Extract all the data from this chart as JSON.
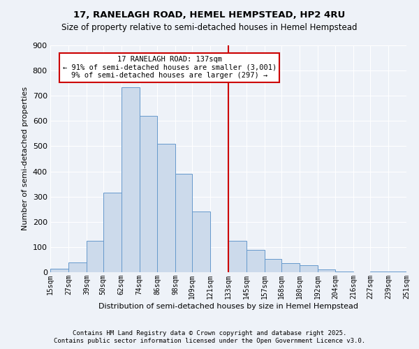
{
  "title1": "17, RANELAGH ROAD, HEMEL HEMPSTEAD, HP2 4RU",
  "title2": "Size of property relative to semi-detached houses in Hemel Hempstead",
  "xlabel": "Distribution of semi-detached houses by size in Hemel Hempstead",
  "ylabel": "Number of semi-detached properties",
  "bar_edges": [
    15,
    27,
    39,
    50,
    62,
    74,
    86,
    98,
    109,
    121,
    133,
    145,
    157,
    168,
    180,
    192,
    204,
    216,
    227,
    239,
    251
  ],
  "bar_heights": [
    15,
    40,
    125,
    315,
    735,
    620,
    510,
    390,
    240,
    0,
    125,
    90,
    52,
    37,
    27,
    10,
    3,
    0,
    3,
    3
  ],
  "bar_color": "#ccdaeb",
  "bar_edge_color": "#6699cc",
  "vline_x": 133,
  "vline_color": "#cc0000",
  "annotation_title": "17 RANELAGH ROAD: 137sqm",
  "annotation_line1": "← 91% of semi-detached houses are smaller (3,001)",
  "annotation_line2": "9% of semi-detached houses are larger (297) →",
  "annotation_box_facecolor": "#ffffff",
  "annotation_box_edgecolor": "#cc0000",
  "ylim": [
    0,
    900
  ],
  "yticks": [
    0,
    100,
    200,
    300,
    400,
    500,
    600,
    700,
    800,
    900
  ],
  "tick_labels": [
    "15sqm",
    "27sqm",
    "39sqm",
    "50sqm",
    "62sqm",
    "74sqm",
    "86sqm",
    "98sqm",
    "109sqm",
    "121sqm",
    "133sqm",
    "145sqm",
    "157sqm",
    "168sqm",
    "180sqm",
    "192sqm",
    "204sqm",
    "216sqm",
    "227sqm",
    "239sqm",
    "251sqm"
  ],
  "footnote1": "Contains HM Land Registry data © Crown copyright and database right 2025.",
  "footnote2": "Contains public sector information licensed under the Open Government Licence v3.0.",
  "bg_color": "#eef2f8",
  "grid_color": "#ffffff",
  "title1_fontsize": 9.5,
  "title2_fontsize": 8.5,
  "xlabel_fontsize": 8,
  "ylabel_fontsize": 8,
  "footnote_fontsize": 6.5
}
